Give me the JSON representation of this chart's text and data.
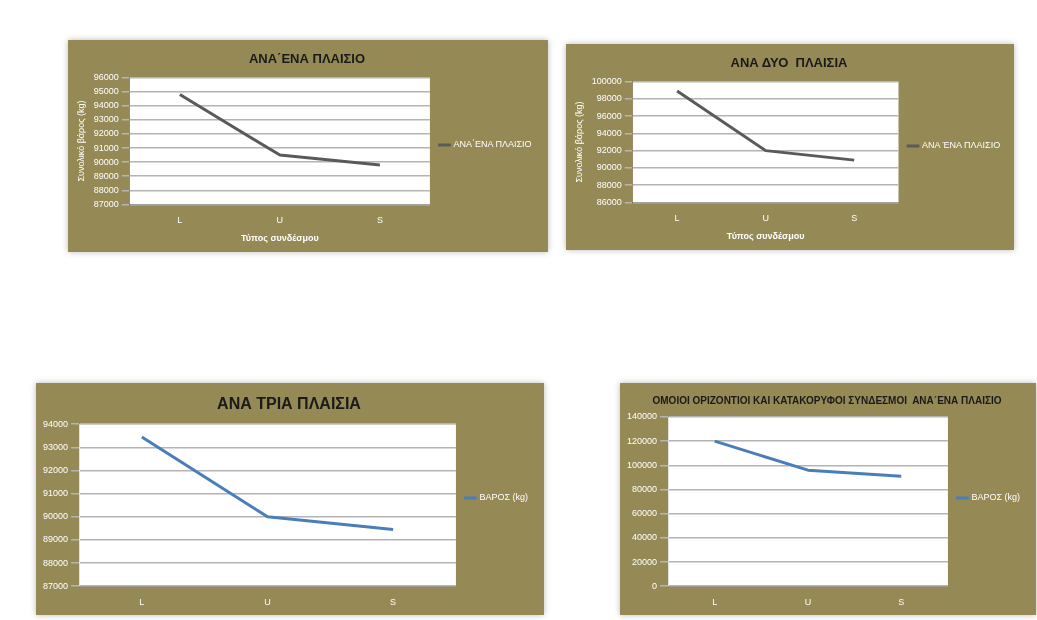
{
  "chart_data": [
    {
      "type": "line",
      "title": "ΑΝΑ΄ΕΝΑ ΠΛΑΙΣΙΟ",
      "xlabel": "Τύπος συνδέσμου",
      "ylabel": "Συνολικό βάρος (kg)",
      "categories": [
        "L",
        "U",
        "S"
      ],
      "series": [
        {
          "name": "ΑΝΑ΄ΕΝΑ ΠΛΑΙΣΙΟ",
          "color": "#5a5a5a",
          "values": [
            94800,
            90500,
            89800
          ]
        }
      ],
      "ylim": [
        87000,
        96000
      ],
      "yticks": [
        87000,
        88000,
        89000,
        90000,
        91000,
        92000,
        93000,
        94000,
        95000,
        96000
      ],
      "grid": "y",
      "legend": "right",
      "marker": "none",
      "line_style": "solid"
    },
    {
      "type": "line",
      "title": "ΑΝΑ ΔΥΟ  ΠΛΑΙΣΙΑ",
      "xlabel": "Τύπος συνδέσμου",
      "ylabel": "Συνολικό βάρος (kg)",
      "categories": [
        "L",
        "U",
        "S"
      ],
      "series": [
        {
          "name": "ΑΝΑ ΈΝΑ ΠΛΑΙΣΙΟ",
          "color": "#5a5a5a",
          "values": [
            98900,
            92000,
            90900
          ]
        }
      ],
      "ylim": [
        86000,
        100000
      ],
      "yticks": [
        86000,
        88000,
        90000,
        92000,
        94000,
        96000,
        98000,
        100000
      ],
      "grid": "y",
      "legend": "right",
      "marker": "none",
      "line_style": "solid"
    },
    {
      "type": "line",
      "title": "ΑΝΑ ΤΡΙΑ ΠΛΑΙΣΙΑ",
      "categories": [
        "L",
        "U",
        "S"
      ],
      "series": [
        {
          "name": "ΒΑΡΟΣ (kg)",
          "color": "#4a7ebb",
          "values": [
            93450,
            90000,
            89450
          ]
        }
      ],
      "ylim": [
        87000,
        94000
      ],
      "yticks": [
        87000,
        88000,
        89000,
        90000,
        91000,
        92000,
        93000,
        94000
      ],
      "grid": "y",
      "legend": "right",
      "marker": "none",
      "line_style": "solid"
    },
    {
      "type": "line",
      "title": "ΟΜΟΙΟΙ ΟΡΙΖΟΝΤΙΟΙ ΚΑΙ ΚΑΤΑΚΟΡΥΦΟΙ ΣΥΝΔΕΣΜΟΙ  ΑΝΑ΄ΕΝΑ ΠΛΑΙΣΙΟ",
      "categories": [
        "L",
        "U",
        "S"
      ],
      "series": [
        {
          "name": "ΒΑΡΟΣ (kg)",
          "color": "#4a7ebb",
          "values": [
            120000,
            96000,
            91000
          ]
        }
      ],
      "ylim": [
        0,
        140000
      ],
      "yticks": [
        0,
        20000,
        40000,
        60000,
        80000,
        100000,
        120000,
        140000
      ],
      "grid": "y",
      "legend": "right",
      "marker": "none",
      "line_style": "solid"
    }
  ]
}
